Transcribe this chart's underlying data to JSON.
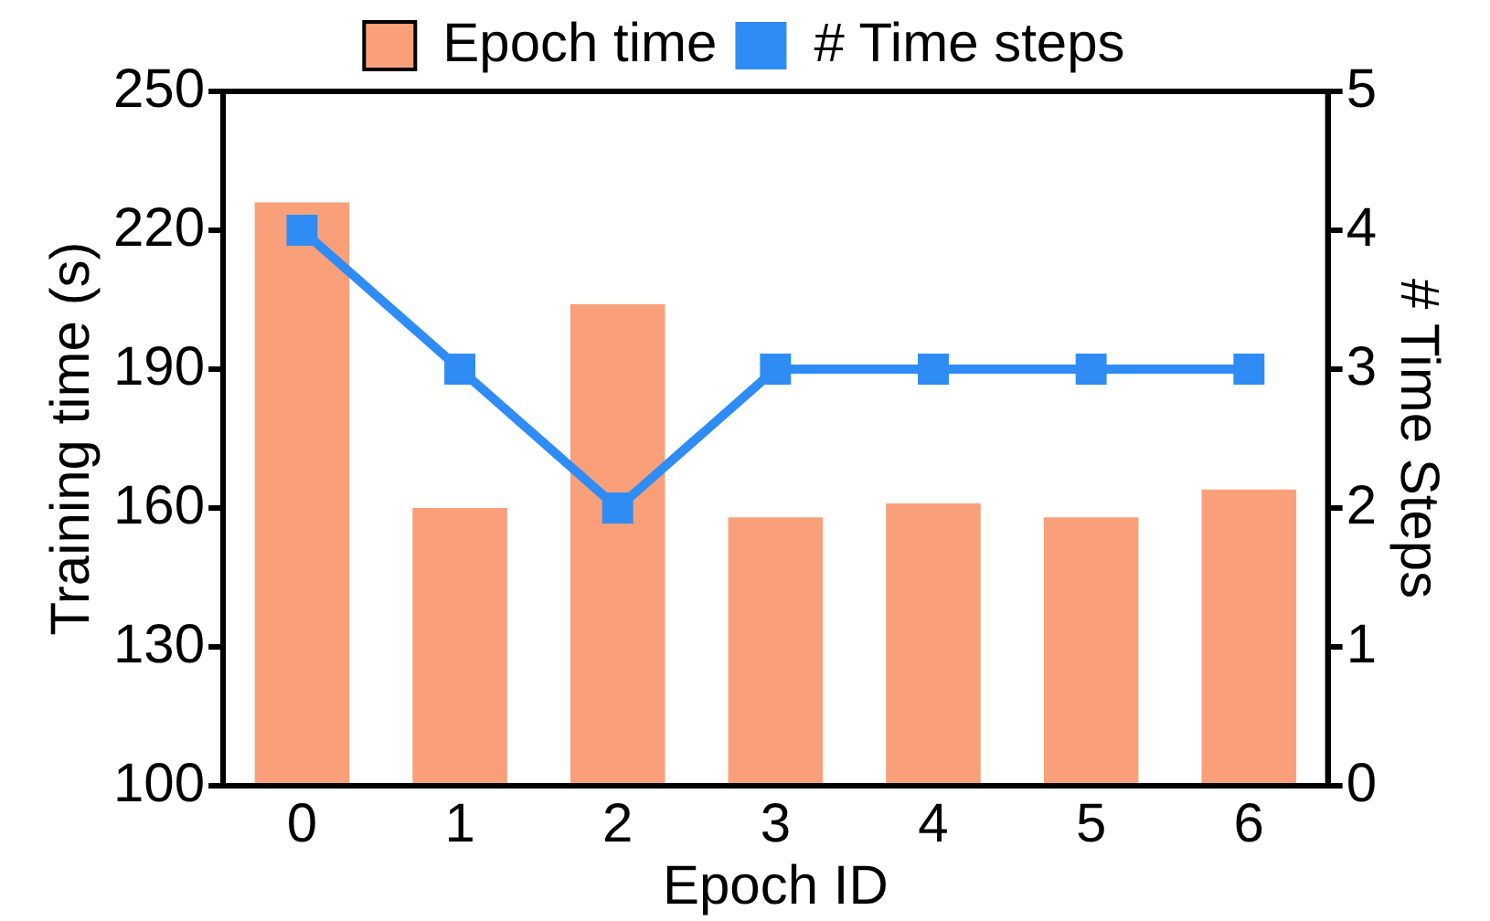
{
  "chart_data": {
    "type": "bar",
    "xlabel": "Epoch ID",
    "ylabel": "Training time (s)",
    "y2label": "# Time Steps",
    "categories": [
      "0",
      "1",
      "2",
      "3",
      "4",
      "5",
      "6"
    ],
    "series": [
      {
        "name": "Epoch time",
        "color": "#f9a07a",
        "values": [
          226,
          160,
          204,
          158,
          161,
          158,
          164
        ]
      },
      {
        "name": "# Time steps",
        "type": "line",
        "axis": "y2",
        "color": "#2f8cf4",
        "marker": "square",
        "values": [
          4,
          3,
          2,
          3,
          3,
          3,
          3
        ]
      }
    ],
    "ylim": [
      100,
      250
    ],
    "yticks": [
      100,
      130,
      160,
      190,
      220,
      250
    ],
    "y2lim": [
      0,
      5
    ],
    "y2ticks": [
      0,
      1,
      2,
      3,
      4,
      5
    ],
    "grid": false,
    "legend": "top"
  }
}
